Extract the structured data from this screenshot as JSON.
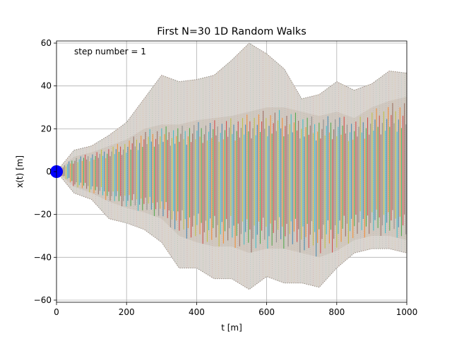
{
  "chart_data": {
    "type": "line",
    "title": "First N=30 1D Random Walks",
    "xlabel": "t [m]",
    "ylabel": "x(t) [m]",
    "xlim": [
      0,
      1000
    ],
    "ylim": [
      -61,
      61
    ],
    "x_ticks": [
      0,
      200,
      400,
      600,
      800,
      1000
    ],
    "y_ticks": [
      -60,
      -40,
      -20,
      0,
      20,
      40,
      60
    ],
    "x_tick_labels": [
      "0",
      "200",
      "400",
      "600",
      "800",
      "1000"
    ],
    "y_tick_labels": [
      "−60",
      "−40",
      "−20",
      "0",
      "20",
      "40",
      "60"
    ],
    "grid": true,
    "annotation": "step number = 1",
    "start_marker": {
      "t": 0,
      "x": 0,
      "color": "#0000ff"
    },
    "envelope_color": "#d9d4cf",
    "walk_count": 30,
    "band_colors": [
      "#1f77b4",
      "#ff7f0e",
      "#2ca02c",
      "#d62728",
      "#8c564b",
      "#7f7f7f",
      "#bcbd22",
      "#17becf"
    ],
    "envelope": {
      "t": [
        0,
        50,
        100,
        150,
        200,
        250,
        300,
        350,
        400,
        450,
        500,
        550,
        600,
        650,
        700,
        750,
        800,
        850,
        900,
        950,
        1000
      ],
      "upper": [
        0,
        10,
        12,
        17,
        23,
        34,
        45,
        42,
        43,
        45,
        52,
        60,
        55,
        48,
        34,
        36,
        42,
        38,
        41,
        47,
        46
      ],
      "lower": [
        0,
        -10,
        -13,
        -22,
        -24,
        -27,
        -33,
        -45,
        -45,
        -50,
        -50,
        -55,
        -49,
        -52,
        -52,
        -54,
        -45,
        -38,
        -36,
        -36,
        -38
      ],
      "inner_upper": [
        0,
        7,
        9,
        12,
        15,
        20,
        22,
        22,
        24,
        25,
        26,
        28,
        30,
        30,
        28,
        26,
        28,
        25,
        30,
        33,
        35
      ],
      "inner_lower": [
        0,
        -7,
        -10,
        -14,
        -17,
        -19,
        -22,
        -30,
        -33,
        -35,
        -35,
        -38,
        -36,
        -36,
        -38,
        -40,
        -37,
        -32,
        -30,
        -30,
        -32
      ]
    }
  }
}
